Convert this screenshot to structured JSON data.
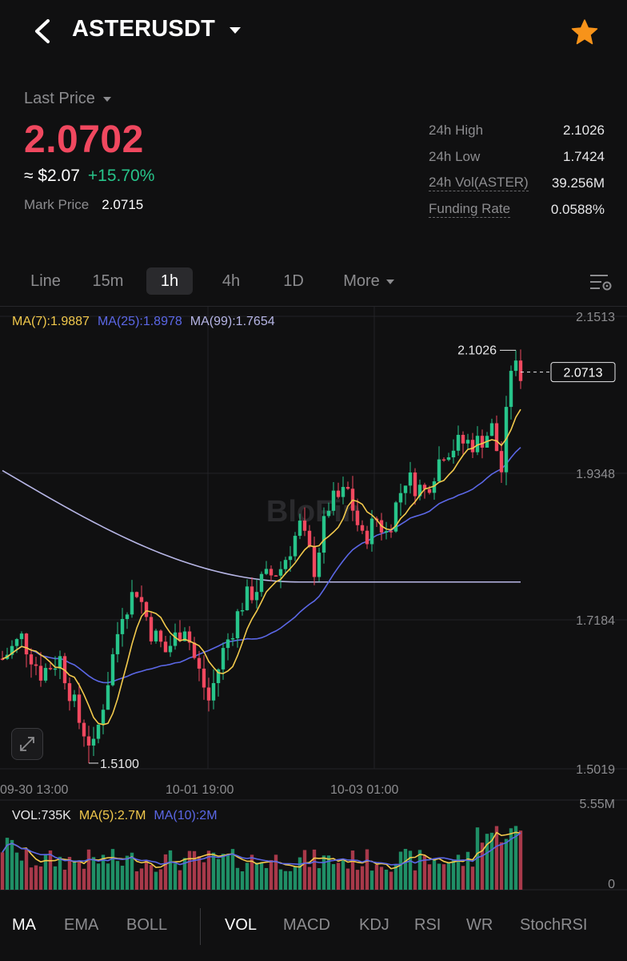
{
  "header": {
    "symbol": "ASTERUSDT",
    "back_icon": "chevron-left-icon",
    "favorite_icon": "star-icon",
    "favorite_color": "#f7931a"
  },
  "price": {
    "last_price_label": "Last Price",
    "last_price": "2.0702",
    "usd_value": "≈ $2.07",
    "change_pct": "+15.70%",
    "mark_price_label": "Mark Price",
    "mark_price": "2.0715",
    "price_color": "#f0485f",
    "change_color": "#27c48a"
  },
  "stats": [
    {
      "label": "24h High",
      "value": "2.1026"
    },
    {
      "label": "24h Low",
      "value": "1.7424"
    },
    {
      "label": "24h Vol(ASTER)",
      "value": "39.256M"
    },
    {
      "label": "Funding Rate",
      "value": "0.0588%"
    }
  ],
  "tabs": {
    "items": [
      "Line",
      "15m",
      "1h",
      "4h",
      "1D",
      "More"
    ],
    "active": "1h"
  },
  "legend": {
    "ma7": "MA(7):1.9887",
    "ma25": "MA(25):1.8978",
    "ma99": "MA(99):1.7654",
    "vol": "VOL:735K",
    "vol_ma5": "MA(5):2.7M",
    "vol_ma10": "MA(10):2M"
  },
  "chart_data": {
    "type": "candlestick",
    "watermark": "BloFin",
    "price_axis": [
      "2.1513",
      "1.9348",
      "1.7184",
      "1.5019"
    ],
    "time_axis": [
      "09-30 13:00",
      "10-01 19:00",
      "10-03 01:00"
    ],
    "ylim": [
      1.5019,
      2.1513
    ],
    "high_marker": "2.1026",
    "low_marker": "1.5100",
    "current_price": "2.0713",
    "vol_axis": [
      "5.55M",
      "0"
    ],
    "colors": {
      "up": "#27c48a",
      "down": "#f0485f",
      "ma7": "#f2c94c",
      "ma25": "#5b67e6",
      "ma99": "#b7b6e6"
    }
  },
  "indicators": {
    "main": [
      "MA",
      "EMA",
      "BOLL"
    ],
    "sub": [
      "VOL",
      "MACD",
      "KDJ",
      "RSI",
      "WR",
      "StochRSI"
    ],
    "active_main": "MA",
    "active_sub": "VOL"
  }
}
